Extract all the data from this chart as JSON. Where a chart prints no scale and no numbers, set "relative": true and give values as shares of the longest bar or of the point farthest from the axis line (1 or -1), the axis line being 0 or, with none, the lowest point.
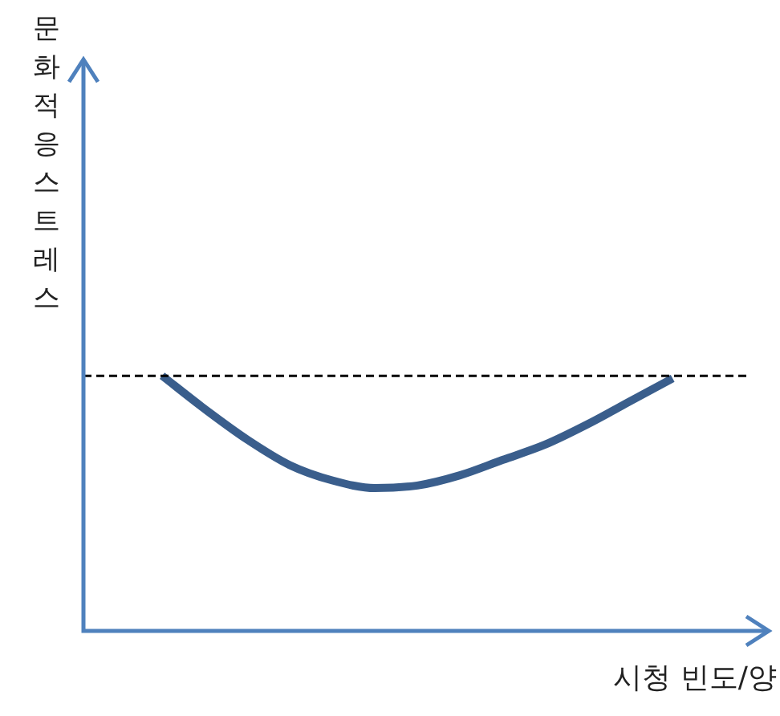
{
  "chart_data": {
    "type": "line",
    "relative": true,
    "xlabel": "시청 빈도/양",
    "ylabel": "문화적응 스트레스",
    "categories": [
      null,
      null,
      null,
      null,
      null,
      null,
      null,
      null,
      null,
      null,
      null,
      null,
      null
    ],
    "series": [
      {
        "color": "#3a5e8c",
        "values": [
          1,
          0.87,
          0.75,
          0.65,
          0.59,
          0.56,
          0.57,
          0.61,
          0.67,
          0.73,
          0.81,
          0.9,
          0.99
        ]
      }
    ],
    "ref_lines": [
      {
        "axis": "y",
        "value": 1,
        "color": "#000000",
        "line_style": "dashed"
      }
    ],
    "line_style": "solid"
  }
}
